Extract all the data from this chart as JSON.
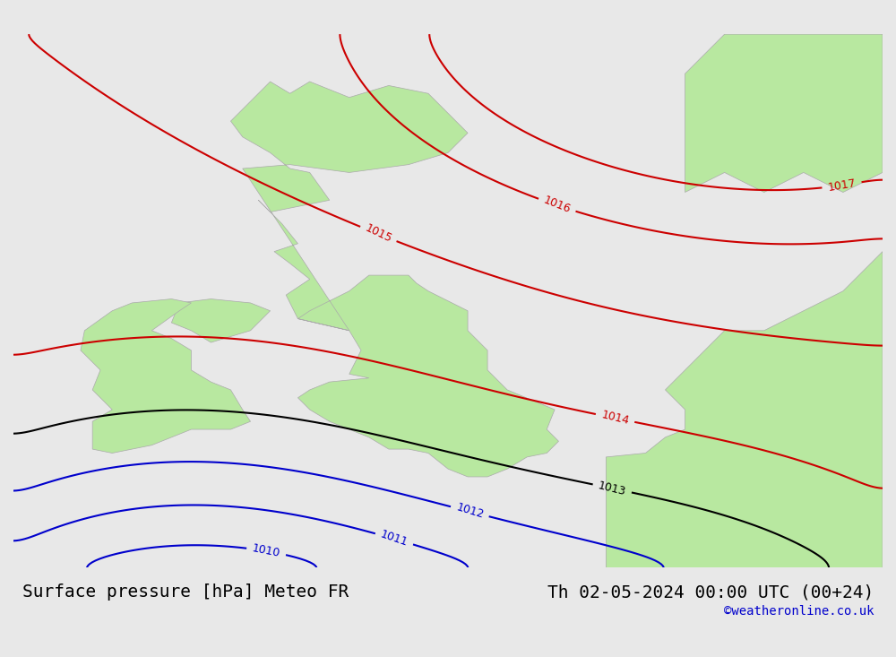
{
  "title_left": "Surface pressure [hPa] Meteo FR",
  "title_right": "Th 02-05-2024 00:00 UTC (00+24)",
  "copyright": "©weatheronline.co.uk",
  "background_color": "#e8e8e8",
  "land_color": "#b8e8a0",
  "sea_color": "#e8e8e8",
  "contour_colors": {
    "red": "#cc0000",
    "black": "#000000",
    "blue": "#0000cc"
  },
  "pressure_levels": {
    "red": [
      1014,
      1015,
      1016,
      1017
    ],
    "black": [
      1013
    ],
    "blue": [
      1010,
      1011,
      1012
    ]
  },
  "title_fontsize": 14,
  "copyright_fontsize": 10
}
